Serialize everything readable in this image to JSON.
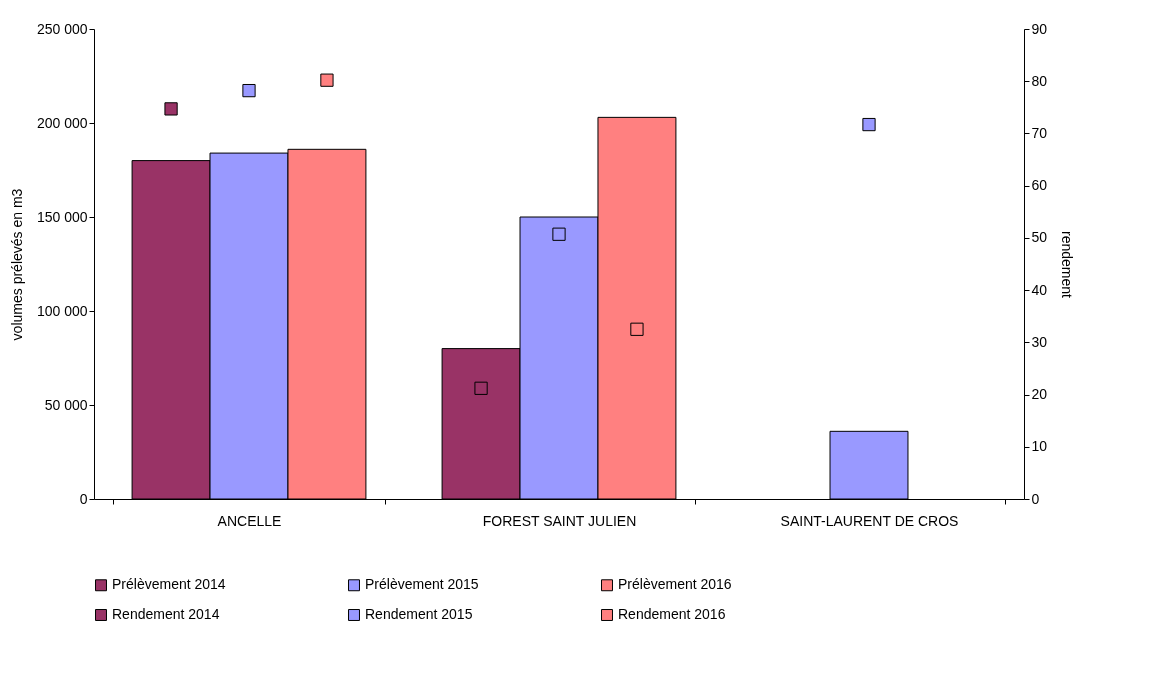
{
  "chart_data": {
    "type": "bar",
    "ylabel": "volumes prélevés en m3",
    "y2label": "rendement",
    "categories": [
      "ANCELLE",
      "FOREST SAINT JULIEN",
      "SAINT-LAURENT DE CROS"
    ],
    "series": [
      {
        "name": "Prélèvement 2014",
        "color": "#993366",
        "values": [
          180000,
          80000,
          null
        ]
      },
      {
        "name": "Prélèvement 2015",
        "color": "#9999ff",
        "values": [
          184000,
          150000,
          36000
        ]
      },
      {
        "name": "Prélèvement 2016",
        "color": "#ff8080",
        "values": [
          186000,
          203000,
          null
        ]
      },
      {
        "name": "Rendement 2014",
        "type": "scatter",
        "axis": "y2",
        "color": "#993366",
        "values": [
          74.7,
          21.2,
          null
        ]
      },
      {
        "name": "Rendement 2015",
        "type": "scatter",
        "axis": "y2",
        "color": "#9999ff",
        "values": [
          78.2,
          50.7,
          71.7
        ]
      },
      {
        "name": "Rendement 2016",
        "type": "scatter",
        "axis": "y2",
        "color": "#ff8080",
        "values": [
          80.2,
          32.5,
          null
        ]
      }
    ],
    "ylim": [
      0,
      250000
    ],
    "yticks": [
      {
        "value": 0,
        "label": "0"
      },
      {
        "value": 50000,
        "label": "50 000"
      },
      {
        "value": 100000,
        "label": "100 000"
      },
      {
        "value": 150000,
        "label": "150 000"
      },
      {
        "value": 200000,
        "label": "200 000"
      },
      {
        "value": 250000,
        "label": "250 000"
      }
    ],
    "y2lim": [
      0,
      90
    ],
    "y2ticks": [
      0,
      10,
      20,
      30,
      40,
      50,
      60,
      70,
      80,
      90
    ],
    "grid": false,
    "legend": "bottom",
    "marker": "square"
  }
}
